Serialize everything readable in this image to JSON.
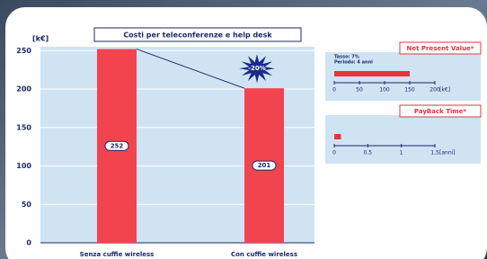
{
  "chart_data": [
    {
      "type": "bar",
      "title": "Costi per teleconferenze e help desk",
      "ylabel": "[k€]",
      "categories": [
        "Senza cuffie wireless",
        "Con cuffie wireless"
      ],
      "values": [
        252,
        201
      ],
      "color": "#f2444e",
      "ylim": [
        0,
        255
      ],
      "yticks": [
        0,
        50,
        100,
        150,
        200,
        250
      ],
      "grid": true,
      "annotation": "-20%"
    },
    {
      "type": "hbar",
      "title": "Net Present Value*",
      "notes": [
        "Tasso: 7%",
        "Periodo: 4 anni"
      ],
      "xlabel": "[k€]",
      "values": [
        150
      ],
      "color": "#e8343e",
      "xlim": [
        0,
        200
      ],
      "xticks": [
        0,
        50,
        100,
        150,
        200
      ]
    },
    {
      "type": "hbar",
      "title": "PayBack Time*",
      "xlabel": "[anni]",
      "values": [
        0.1
      ],
      "color": "#e8343e",
      "xlim": [
        0,
        1.5
      ],
      "xticks": [
        0,
        0.5,
        1,
        1.5
      ]
    }
  ]
}
